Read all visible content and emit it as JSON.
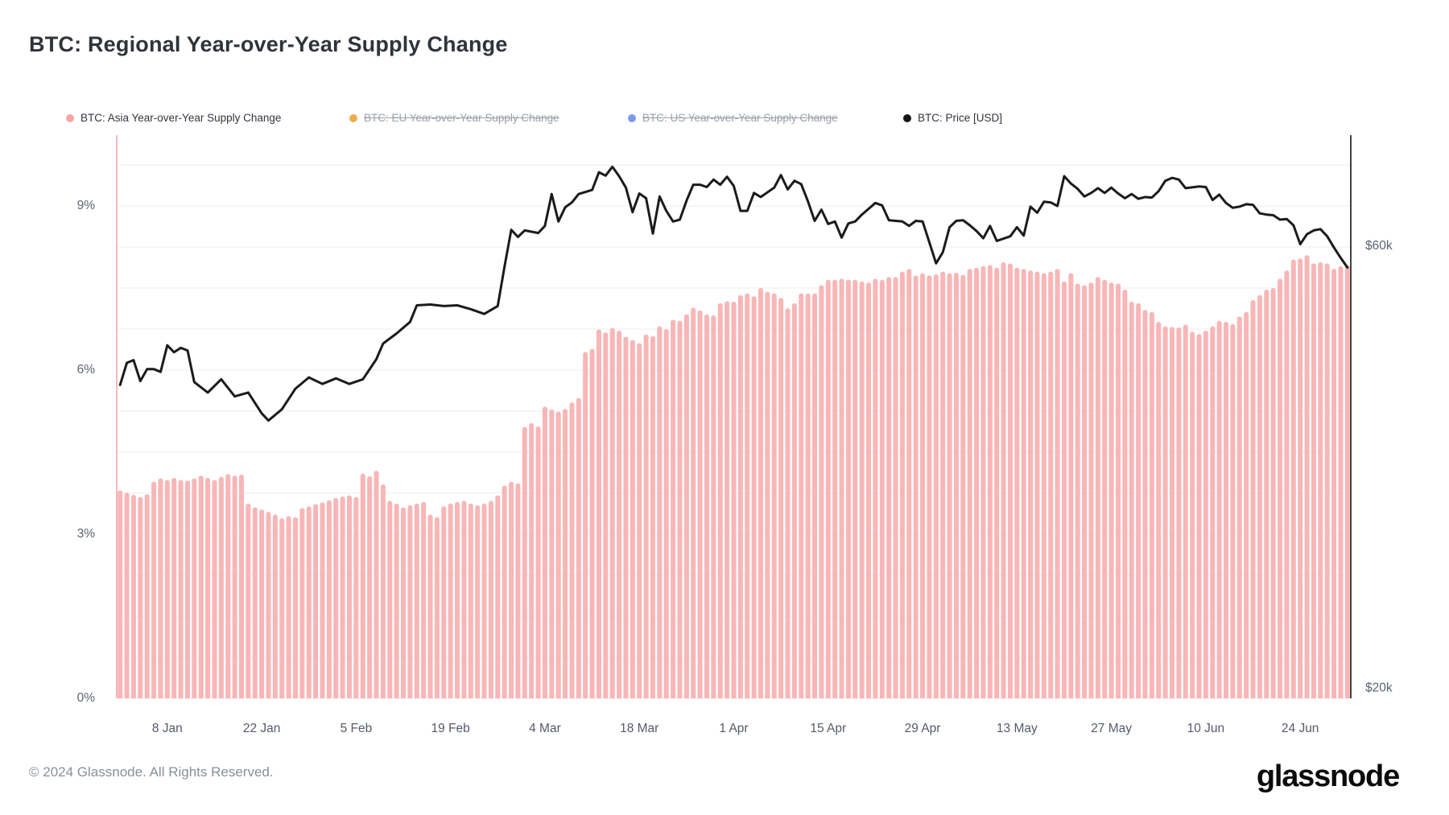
{
  "title": "BTC: Regional Year-over-Year Supply Change",
  "legend": {
    "items": [
      {
        "label": "BTC: Asia Year-over-Year Supply Change",
        "color": "#f5a5a5",
        "active": true
      },
      {
        "label": "BTC: EU Year-over-Year Supply Change",
        "color": "#eeab4f",
        "active": false
      },
      {
        "label": "BTC: US Year-over-Year Supply Change",
        "color": "#7d99ea",
        "active": false
      },
      {
        "label": "BTC: Price [USD]",
        "color": "#161616",
        "active": true
      }
    ]
  },
  "footer": {
    "copyright": "© 2024 Glassnode. All Rights Reserved.",
    "brand": "glassnode"
  },
  "chart_data": {
    "type": "bar",
    "title": "BTC: Regional Year-over-Year Supply Change",
    "x_frequency": "daily",
    "x_range_days": 183,
    "x_ticks": [
      {
        "label": "8 Jan",
        "day": 7
      },
      {
        "label": "22 Jan",
        "day": 21
      },
      {
        "label": "5 Feb",
        "day": 35
      },
      {
        "label": "19 Feb",
        "day": 49
      },
      {
        "label": "4 Mar",
        "day": 63
      },
      {
        "label": "18 Mar",
        "day": 77
      },
      {
        "label": "1 Apr",
        "day": 91
      },
      {
        "label": "15 Apr",
        "day": 105
      },
      {
        "label": "29 Apr",
        "day": 119
      },
      {
        "label": "13 May",
        "day": 133
      },
      {
        "label": "27 May",
        "day": 147
      },
      {
        "label": "10 Jun",
        "day": 161
      },
      {
        "label": "24 Jun",
        "day": 175
      }
    ],
    "y_left_axis": {
      "ticks": [
        "0%",
        "3%",
        "6%",
        "9%"
      ],
      "tick_values": [
        0,
        3,
        6,
        9
      ],
      "minor_grid_step": 0.75,
      "max": 10.3,
      "grid": true
    },
    "y_right_axis": {
      "ticks": [
        "$20k",
        "$60k"
      ],
      "tick_values": [
        20,
        60
      ],
      "scale": "log",
      "unit": "USD (thousands)"
    },
    "series": [
      {
        "name": "BTC: Asia Year-over-Year Supply Change",
        "type": "bar",
        "axis": "left",
        "unit": "%",
        "color": "#f9b6b6",
        "values": [
          3.8,
          3.76,
          3.72,
          3.68,
          3.73,
          3.96,
          4.02,
          3.99,
          4.03,
          3.99,
          3.98,
          4.02,
          4.07,
          4.03,
          3.99,
          4.05,
          4.1,
          4.07,
          4.09,
          3.56,
          3.49,
          3.45,
          3.41,
          3.36,
          3.29,
          3.33,
          3.31,
          3.48,
          3.51,
          3.55,
          3.58,
          3.62,
          3.66,
          3.69,
          3.71,
          3.68,
          4.11,
          4.06,
          4.16,
          3.91,
          3.61,
          3.56,
          3.49,
          3.53,
          3.56,
          3.59,
          3.36,
          3.31,
          3.51,
          3.56,
          3.59,
          3.61,
          3.56,
          3.53,
          3.56,
          3.61,
          3.71,
          3.89,
          3.96,
          3.93,
          4.96,
          5.03,
          4.97,
          5.33,
          5.28,
          5.24,
          5.29,
          5.41,
          5.49,
          6.33,
          6.39,
          6.74,
          6.69,
          6.77,
          6.72,
          6.61,
          6.55,
          6.49,
          6.65,
          6.62,
          6.8,
          6.75,
          6.92,
          6.9,
          7.02,
          7.14,
          7.09,
          7.02,
          7.0,
          7.22,
          7.26,
          7.25,
          7.37,
          7.4,
          7.35,
          7.5,
          7.43,
          7.4,
          7.32,
          7.13,
          7.22,
          7.4,
          7.4,
          7.4,
          7.55,
          7.65,
          7.65,
          7.67,
          7.65,
          7.65,
          7.62,
          7.6,
          7.67,
          7.65,
          7.7,
          7.7,
          7.8,
          7.85,
          7.73,
          7.77,
          7.73,
          7.75,
          7.8,
          7.77,
          7.78,
          7.74,
          7.85,
          7.87,
          7.9,
          7.92,
          7.87,
          7.97,
          7.95,
          7.87,
          7.85,
          7.82,
          7.8,
          7.77,
          7.8,
          7.85,
          7.62,
          7.77,
          7.58,
          7.55,
          7.6,
          7.7,
          7.65,
          7.6,
          7.58,
          7.47,
          7.25,
          7.22,
          7.1,
          7.06,
          6.88,
          6.8,
          6.79,
          6.78,
          6.83,
          6.7,
          6.66,
          6.72,
          6.8,
          6.9,
          6.88,
          6.84,
          6.98,
          7.06,
          7.28,
          7.37,
          7.47,
          7.5,
          7.67,
          7.82,
          8.02,
          8.04,
          8.1,
          7.95,
          7.97,
          7.95,
          7.85,
          7.9,
          7.92
        ]
      },
      {
        "name": "BTC: EU Year-over-Year Supply Change",
        "type": "bar",
        "axis": "left",
        "unit": "%",
        "color": "#eeab4f",
        "hidden": true,
        "values": []
      },
      {
        "name": "BTC: US Year-over-Year Supply Change",
        "type": "bar",
        "axis": "left",
        "unit": "%",
        "color": "#7d99ea",
        "hidden": true,
        "values": []
      },
      {
        "name": "BTC: Price [USD]",
        "type": "line",
        "axis": "right",
        "unit": "$k",
        "color": "#1b1b1b",
        "points": [
          [
            0,
            42.5
          ],
          [
            1,
            44.9
          ],
          [
            2,
            45.2
          ],
          [
            3,
            42.9
          ],
          [
            4,
            44.2
          ],
          [
            5,
            44.2
          ],
          [
            6,
            43.9
          ],
          [
            7,
            46.9
          ],
          [
            8,
            46.1
          ],
          [
            9,
            46.6
          ],
          [
            10,
            46.3
          ],
          [
            11,
            42.8
          ],
          [
            13,
            41.7
          ],
          [
            15,
            43.1
          ],
          [
            17,
            41.3
          ],
          [
            19,
            41.7
          ],
          [
            21,
            39.6
          ],
          [
            22,
            38.9
          ],
          [
            24,
            40.0
          ],
          [
            26,
            42.1
          ],
          [
            28,
            43.3
          ],
          [
            30,
            42.6
          ],
          [
            32,
            43.2
          ],
          [
            34,
            42.6
          ],
          [
            36,
            43.1
          ],
          [
            38,
            45.3
          ],
          [
            39,
            47.1
          ],
          [
            41,
            48.3
          ],
          [
            43,
            49.7
          ],
          [
            44,
            51.8
          ],
          [
            46,
            51.9
          ],
          [
            48,
            51.7
          ],
          [
            50,
            51.8
          ],
          [
            52,
            51.3
          ],
          [
            54,
            50.7
          ],
          [
            56,
            51.7
          ],
          [
            57,
            57.0
          ],
          [
            58,
            62.5
          ],
          [
            59,
            61.4
          ],
          [
            60,
            62.4
          ],
          [
            62,
            62.0
          ],
          [
            63,
            63.1
          ],
          [
            64,
            68.3
          ],
          [
            65,
            63.8
          ],
          [
            66,
            66.1
          ],
          [
            67,
            66.9
          ],
          [
            68,
            68.3
          ],
          [
            70,
            69.0
          ],
          [
            71,
            72.1
          ],
          [
            72,
            71.5
          ],
          [
            73,
            73.1
          ],
          [
            74,
            71.4
          ],
          [
            75,
            69.4
          ],
          [
            76,
            65.3
          ],
          [
            77,
            68.4
          ],
          [
            78,
            67.6
          ],
          [
            79,
            61.9
          ],
          [
            80,
            67.9
          ],
          [
            81,
            65.5
          ],
          [
            82,
            63.8
          ],
          [
            83,
            64.1
          ],
          [
            84,
            67.2
          ],
          [
            85,
            69.9
          ],
          [
            86,
            69.9
          ],
          [
            87,
            69.5
          ],
          [
            88,
            70.8
          ],
          [
            89,
            69.9
          ],
          [
            90,
            71.3
          ],
          [
            91,
            69.7
          ],
          [
            92,
            65.5
          ],
          [
            93,
            65.5
          ],
          [
            94,
            68.5
          ],
          [
            95,
            67.8
          ],
          [
            97,
            69.4
          ],
          [
            98,
            71.6
          ],
          [
            99,
            69.1
          ],
          [
            100,
            70.6
          ],
          [
            101,
            70.0
          ],
          [
            102,
            67.1
          ],
          [
            103,
            63.9
          ],
          [
            104,
            65.7
          ],
          [
            105,
            63.4
          ],
          [
            106,
            63.8
          ],
          [
            107,
            61.3
          ],
          [
            108,
            63.5
          ],
          [
            109,
            63.8
          ],
          [
            110,
            64.9
          ],
          [
            112,
            66.8
          ],
          [
            113,
            66.4
          ],
          [
            114,
            64.0
          ],
          [
            116,
            63.8
          ],
          [
            117,
            63.1
          ],
          [
            118,
            63.9
          ],
          [
            119,
            63.8
          ],
          [
            120,
            60.6
          ],
          [
            121,
            57.5
          ],
          [
            122,
            59.1
          ],
          [
            123,
            62.9
          ],
          [
            124,
            63.9
          ],
          [
            125,
            64.0
          ],
          [
            126,
            63.2
          ],
          [
            127,
            62.3
          ],
          [
            128,
            61.2
          ],
          [
            129,
            63.1
          ],
          [
            130,
            60.8
          ],
          [
            132,
            61.5
          ],
          [
            133,
            62.9
          ],
          [
            134,
            61.6
          ],
          [
            135,
            66.2
          ],
          [
            136,
            65.2
          ],
          [
            137,
            67.0
          ],
          [
            138,
            66.9
          ],
          [
            139,
            66.3
          ],
          [
            140,
            71.4
          ],
          [
            141,
            70.1
          ],
          [
            142,
            69.2
          ],
          [
            143,
            67.9
          ],
          [
            144,
            68.5
          ],
          [
            145,
            69.3
          ],
          [
            146,
            68.5
          ],
          [
            147,
            69.4
          ],
          [
            148,
            68.4
          ],
          [
            149,
            67.6
          ],
          [
            150,
            68.3
          ],
          [
            151,
            67.5
          ],
          [
            152,
            67.8
          ],
          [
            153,
            67.7
          ],
          [
            154,
            68.8
          ],
          [
            155,
            70.6
          ],
          [
            156,
            71.1
          ],
          [
            157,
            70.8
          ],
          [
            158,
            69.3
          ],
          [
            160,
            69.6
          ],
          [
            161,
            69.5
          ],
          [
            162,
            67.3
          ],
          [
            163,
            68.2
          ],
          [
            164,
            66.8
          ],
          [
            165,
            66.0
          ],
          [
            166,
            66.2
          ],
          [
            167,
            66.6
          ],
          [
            168,
            66.5
          ],
          [
            169,
            65.1
          ],
          [
            170,
            64.9
          ],
          [
            171,
            64.8
          ],
          [
            172,
            64.1
          ],
          [
            173,
            64.2
          ],
          [
            174,
            63.2
          ],
          [
            175,
            60.3
          ],
          [
            176,
            61.8
          ],
          [
            177,
            62.4
          ],
          [
            178,
            62.6
          ],
          [
            179,
            61.5
          ],
          [
            180,
            59.8
          ],
          [
            181,
            58.3
          ],
          [
            182,
            56.9
          ]
        ]
      }
    ]
  }
}
